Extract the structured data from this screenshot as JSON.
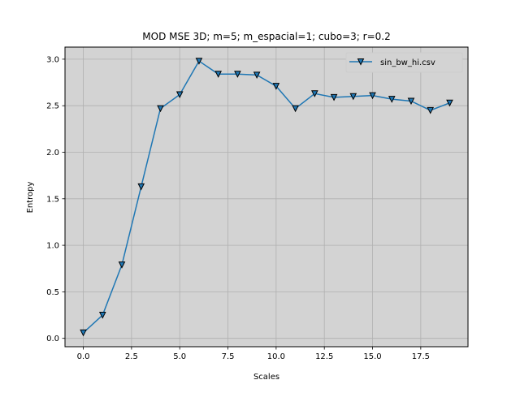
{
  "chart_data": {
    "type": "line",
    "title": "MOD MSE 3D; m=5; m_espacial=1; cubo=3; r=0.2",
    "xlabel": "Scales",
    "ylabel": "Entropy",
    "xlim": [
      -0.95,
      19.95
    ],
    "ylim": [
      -0.09,
      3.13
    ],
    "xticks": [
      0,
      2.5,
      5,
      7.5,
      10,
      12.5,
      15,
      17.5
    ],
    "xtick_labels": [
      "0.0",
      "2.5",
      "5.0",
      "7.5",
      "10.0",
      "12.5",
      "15.0",
      "17.5"
    ],
    "yticks": [
      0,
      0.5,
      1.0,
      1.5,
      2.0,
      2.5,
      3.0
    ],
    "ytick_labels": [
      "0.0",
      "0.5",
      "1.0",
      "1.5",
      "2.0",
      "2.5",
      "3.0"
    ],
    "grid": true,
    "legend_position": "top-right",
    "background_color": "#d3d3d3",
    "x": [
      0,
      1,
      2,
      3,
      4,
      5,
      6,
      7,
      8,
      9,
      10,
      11,
      12,
      13,
      14,
      15,
      16,
      17,
      18,
      19
    ],
    "series": [
      {
        "name": "sin_bw_hi.csv",
        "color": "#1f77b4",
        "marker": "triangle-down",
        "values": [
          0.06,
          0.25,
          0.79,
          1.63,
          2.47,
          2.62,
          2.98,
          2.84,
          2.84,
          2.83,
          2.71,
          2.47,
          2.63,
          2.59,
          2.6,
          2.61,
          2.57,
          2.55,
          2.45,
          2.53
        ]
      }
    ]
  }
}
